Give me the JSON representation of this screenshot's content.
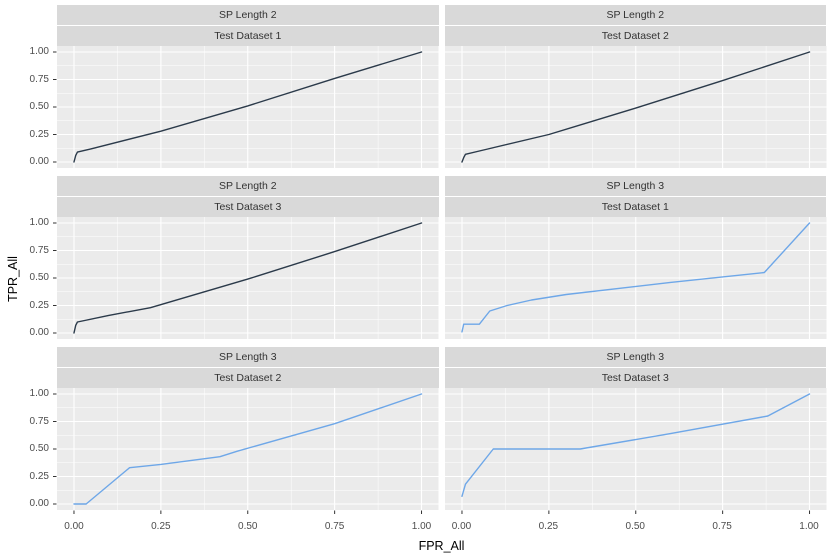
{
  "figure": {
    "y_axis_title": "TPR_All",
    "x_axis_title": "FPR_All",
    "y_tick_labels": [
      "1.00",
      "0.75",
      "0.50",
      "0.25",
      "0.00"
    ],
    "x_tick_labels": [
      "0.00",
      "0.25",
      "0.50",
      "0.75",
      "1.00"
    ]
  },
  "colors": {
    "page_background": "#FFFFFF",
    "panel_background": "#EBEBEB",
    "strip_background": "#D9D9D9",
    "grid_line": "#FFFFFF",
    "tick_mark": "#333333",
    "axis_text": "#4D4D4D",
    "strip_text": "#333333",
    "axis_title_text": "#000000",
    "line_sp_length_2": "#2B3A4A",
    "line_sp_length_3": "#6EA7E8"
  },
  "chart_data": {
    "type": "line",
    "description": "Faceted ROC-style curves (ggplot2 theme_gray), 3 rows x 2 columns of facets",
    "xlabel": "FPR_All",
    "ylabel": "TPR_All",
    "xlim": [
      0,
      1
    ],
    "ylim": [
      0,
      1
    ],
    "x_ticks": [
      0,
      0.25,
      0.5,
      0.75,
      1
    ],
    "y_ticks": [
      0,
      0.25,
      0.5,
      0.75,
      1
    ],
    "grid": "white major gridlines at ticks plus thinner minor gridlines at 0.125 intervals, on gray panel",
    "legend_position": "none",
    "facets": [
      {
        "strip": [
          "SP Length 2",
          "Test Dataset 1"
        ],
        "color_key": "line_sp_length_2",
        "points": [
          [
            0,
            0
          ],
          [
            0.005,
            0.06
          ],
          [
            0.01,
            0.09
          ],
          [
            0.05,
            0.12
          ],
          [
            0.25,
            0.28
          ],
          [
            0.5,
            0.51
          ],
          [
            0.75,
            0.76
          ],
          [
            1,
            1
          ]
        ]
      },
      {
        "strip": [
          "SP Length 2",
          "Test Dataset 2"
        ],
        "color_key": "line_sp_length_2",
        "points": [
          [
            0,
            0
          ],
          [
            0.005,
            0.04
          ],
          [
            0.01,
            0.07
          ],
          [
            0.05,
            0.1
          ],
          [
            0.25,
            0.25
          ],
          [
            0.5,
            0.49
          ],
          [
            0.75,
            0.74
          ],
          [
            1,
            1
          ]
        ]
      },
      {
        "strip": [
          "SP Length 2",
          "Test Dataset 3"
        ],
        "color_key": "line_sp_length_2",
        "points": [
          [
            0,
            0
          ],
          [
            0.005,
            0.07
          ],
          [
            0.01,
            0.1
          ],
          [
            0.1,
            0.16
          ],
          [
            0.22,
            0.23
          ],
          [
            0.5,
            0.49
          ],
          [
            0.75,
            0.74
          ],
          [
            1,
            1
          ]
        ]
      },
      {
        "strip": [
          "SP Length 3",
          "Test Dataset 1"
        ],
        "color_key": "line_sp_length_3",
        "points": [
          [
            0,
            0.01
          ],
          [
            0.005,
            0.08
          ],
          [
            0.05,
            0.08
          ],
          [
            0.08,
            0.2
          ],
          [
            0.13,
            0.25
          ],
          [
            0.2,
            0.3
          ],
          [
            0.3,
            0.35
          ],
          [
            0.6,
            0.46
          ],
          [
            0.87,
            0.55
          ],
          [
            1,
            1
          ]
        ]
      },
      {
        "strip": [
          "SP Length 3",
          "Test Dataset 2"
        ],
        "color_key": "line_sp_length_3",
        "points": [
          [
            0,
            0
          ],
          [
            0.035,
            0
          ],
          [
            0.16,
            0.33
          ],
          [
            0.25,
            0.36
          ],
          [
            0.42,
            0.43
          ],
          [
            0.47,
            0.48
          ],
          [
            0.75,
            0.73
          ],
          [
            1,
            1
          ]
        ]
      },
      {
        "strip": [
          "SP Length 3",
          "Test Dataset 3"
        ],
        "color_key": "line_sp_length_3",
        "points": [
          [
            0,
            0.07
          ],
          [
            0.01,
            0.18
          ],
          [
            0.09,
            0.5
          ],
          [
            0.34,
            0.5
          ],
          [
            0.6,
            0.64
          ],
          [
            0.88,
            0.8
          ],
          [
            1,
            1
          ]
        ]
      }
    ]
  }
}
